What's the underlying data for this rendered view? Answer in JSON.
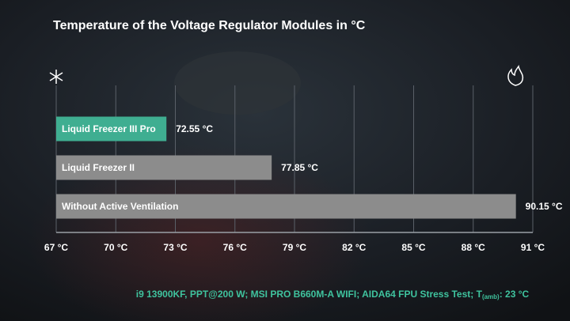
{
  "chart_data": {
    "type": "bar",
    "orientation": "horizontal",
    "title": "Temperature of the Voltage Regulator Modules in °C",
    "categories": [
      "Liquid Freezer III Pro",
      "Liquid Freezer II",
      "Without Active Ventilation"
    ],
    "values": [
      72.55,
      77.85,
      90.15
    ],
    "value_labels": [
      "72.55 °C",
      "77.85 °C",
      "90.15 °C"
    ],
    "colors": [
      "#3fae91",
      "#8c8c8c",
      "#8c8c8c"
    ],
    "xlim": [
      67,
      91
    ],
    "xticks": [
      {
        "value": 67,
        "label": "67 °C"
      },
      {
        "value": 70,
        "label": "70 °C"
      },
      {
        "value": 73,
        "label": "73 °C"
      },
      {
        "value": 76,
        "label": "76 °C"
      },
      {
        "value": 79,
        "label": "79 °C"
      },
      {
        "value": 82,
        "label": "82 °C"
      },
      {
        "value": 85,
        "label": "85 °C"
      },
      {
        "value": 88,
        "label": "88 °C"
      },
      {
        "value": 91,
        "label": "91 °C"
      }
    ],
    "grid": true,
    "footnote": {
      "text": "i9 13900KF, PPT@200 W; MSI PRO B660M-A WIFI; AIDA64 FPU Stress Test; T",
      "subscript": "(amb)",
      "suffix": ": 23 °C"
    }
  }
}
